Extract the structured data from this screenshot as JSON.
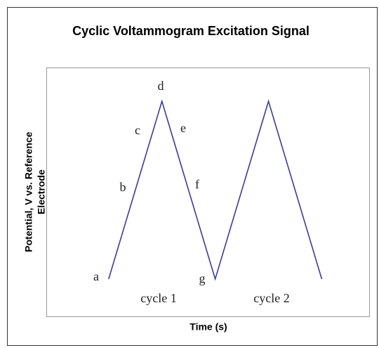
{
  "chart_data": {
    "type": "line",
    "title": "Cyclic Voltammogram Excitation Signal",
    "x_label": "Time (s)",
    "y_label_lines": [
      "Potential, V vs. Reference",
      "Electrode"
    ],
    "x": [
      0,
      1,
      2,
      3,
      4
    ],
    "values": [
      0,
      1,
      0,
      1,
      0
    ],
    "color": "#3b3b9c",
    "xlim": [
      -1.17,
      4.89
    ],
    "ylim": [
      -0.21,
      1.19
    ],
    "annotations": [
      "a",
      "b",
      "c",
      "d",
      "e",
      "f",
      "g",
      "cycle 1",
      "cycle 2"
    ]
  }
}
